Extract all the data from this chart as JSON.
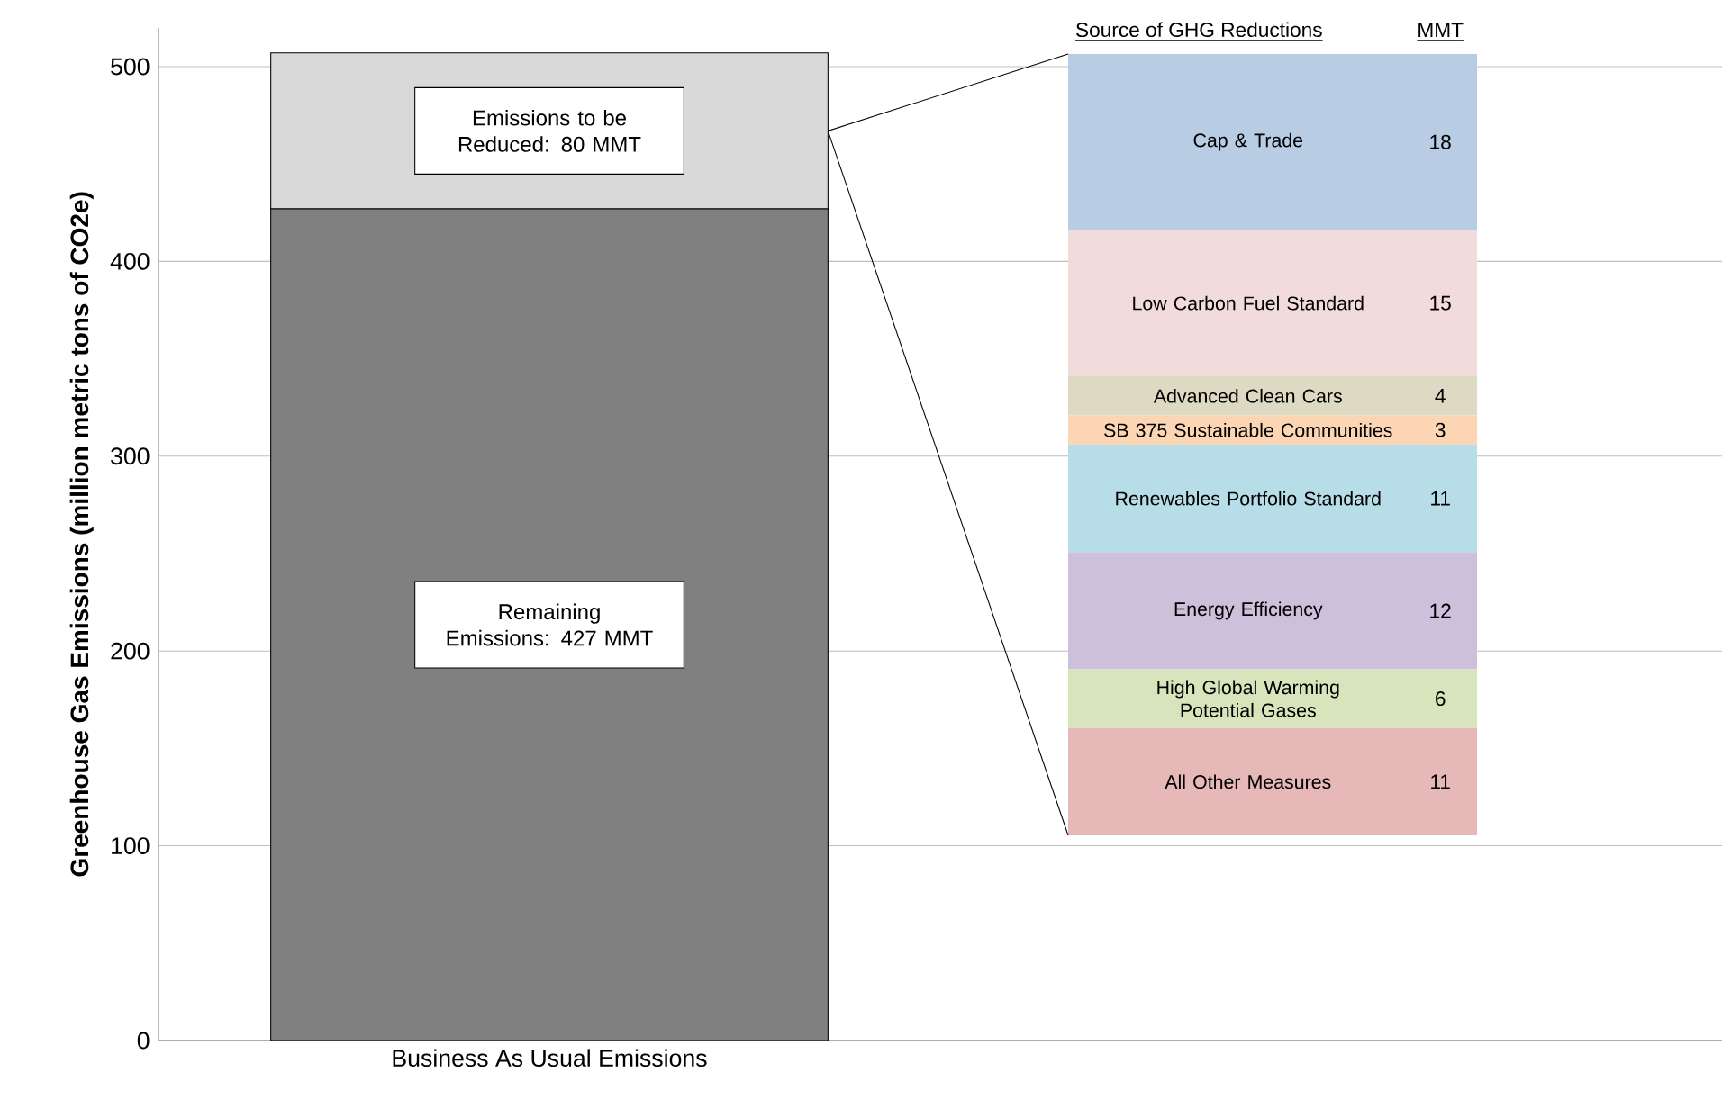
{
  "chart_data": [
    {
      "type": "bar",
      "stacked": true,
      "categories": [
        "Business As Usual Emissions",
        null
      ],
      "ylabel": "Greenhouse Gas Emissions (million metric tons of CO2e)",
      "ylim": [
        0,
        520
      ],
      "yticks": [
        0,
        100,
        200,
        300,
        400,
        500
      ],
      "grid": "y",
      "series": [
        {
          "name": "Remaining Emissions: 427 MMT",
          "color": "#808080",
          "values": [
            427,
            null
          ]
        },
        {
          "name": "Emissions to be Reduced:  80 MMT",
          "color": "#d9d9d9",
          "values": [
            80,
            null
          ]
        }
      ]
    },
    {
      "type": "bar",
      "stacked": true,
      "title": "Source of GHG Reductions",
      "annotations": [
        "MMT"
      ],
      "categories": [
        null
      ],
      "data_labels": true,
      "series": [
        {
          "name": "All Other Measures",
          "color": "#e6b9b8",
          "values": [
            11
          ]
        },
        {
          "name": "High Global Warming Potential Gases",
          "color": "#d7e4bc",
          "values": [
            6
          ]
        },
        {
          "name": "Energy Efficiency",
          "color": "#ccc0da",
          "values": [
            12
          ]
        },
        {
          "name": "Renewables Portfolio Standard",
          "color": "#b7dee8",
          "values": [
            11
          ]
        },
        {
          "name": "SB 375 Sustainable Communities",
          "color": "#fcd5b4",
          "values": [
            3
          ]
        },
        {
          "name": "Advanced Clean Cars",
          "color": "#ddd9c3",
          "values": [
            4
          ]
        },
        {
          "name": "Low Carbon Fuel Standard",
          "color": "#f2dcdb",
          "values": [
            15
          ]
        },
        {
          "name": "Cap & Trade",
          "color": "#b8cce4",
          "values": [
            18
          ]
        }
      ]
    }
  ]
}
